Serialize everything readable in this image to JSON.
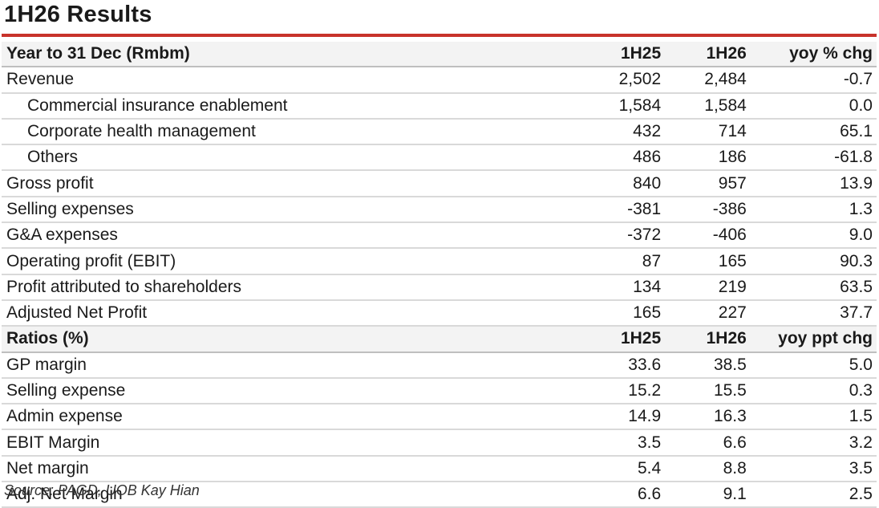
{
  "title": "1H26 Results",
  "header": {
    "label": "Year to 31 Dec (Rmbm)",
    "c1": "1H25",
    "c2": "1H26",
    "c3": "yoy % chg"
  },
  "rows": [
    {
      "label": "Revenue",
      "v1": "2,502",
      "v2": "2,484",
      "v3": "-0.7"
    },
    {
      "label": "Commercial insurance enablement",
      "v1": "1,584",
      "v2": "1,584",
      "v3": "0.0"
    },
    {
      "label": "Corporate health management",
      "v1": "432",
      "v2": "714",
      "v3": "65.1"
    },
    {
      "label": "Others",
      "v1": "486",
      "v2": "186",
      "v3": "-61.8"
    },
    {
      "label": "Gross profit",
      "v1": "840",
      "v2": "957",
      "v3": "13.9"
    },
    {
      "label": "Selling expenses",
      "v1": "-381",
      "v2": "-386",
      "v3": "1.3"
    },
    {
      "label": "G&A expenses",
      "v1": "-372",
      "v2": "-406",
      "v3": "9.0"
    },
    {
      "label": "Operating profit (EBIT)",
      "v1": "87",
      "v2": "165",
      "v3": "90.3"
    },
    {
      "label": "Profit attributed to shareholders",
      "v1": "134",
      "v2": "219",
      "v3": "63.5"
    },
    {
      "label": "Adjusted Net Profit",
      "v1": "165",
      "v2": "227",
      "v3": "37.7"
    }
  ],
  "ratios_header": {
    "label": "Ratios (%)",
    "c1": "1H25",
    "c2": "1H26",
    "c3": "yoy ppt chg"
  },
  "ratios": [
    {
      "label": "GP margin",
      "v1": "33.6",
      "v2": "38.5",
      "v3": "5.0"
    },
    {
      "label": "Selling expense",
      "v1": "15.2",
      "v2": "15.5",
      "v3": "0.3"
    },
    {
      "label": "Admin expense",
      "v1": "14.9",
      "v2": "16.3",
      "v3": "1.5"
    },
    {
      "label": "EBIT Margin",
      "v1": "3.5",
      "v2": "6.6",
      "v3": "3.2"
    },
    {
      "label": "Net margin",
      "v1": "5.4",
      "v2": "8.8",
      "v3": "3.5"
    },
    {
      "label": "Adj. Net Margin",
      "v1": "6.6",
      "v2": "9.1",
      "v3": "2.5"
    }
  ],
  "source": "Source: PAGD, UOB Kay Hian",
  "colors": {
    "accent_rule": "#c8332b",
    "header_bg": "#f3f3f3",
    "row_rule": "#d9d9d9"
  }
}
